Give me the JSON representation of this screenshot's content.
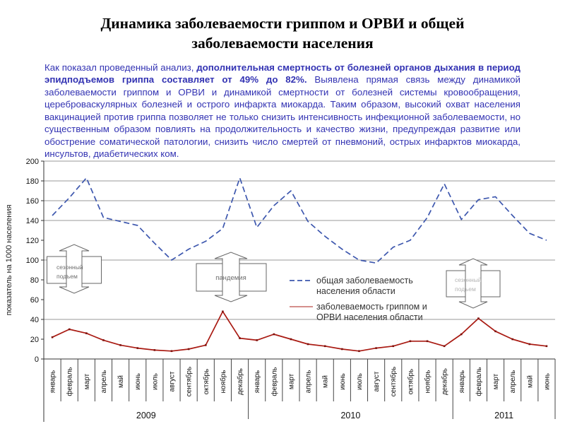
{
  "slide": {
    "title_lines": [
      "Динамика заболеваемости гриппом и ОРВИ и общей",
      "заболеваемости населения"
    ],
    "paragraph": {
      "intro": "Как показал проведенный анализ, ",
      "bold": "дополнительная смертность от болезней органов дыхания в период эпидподъемов гриппа составляет от 49% до 82%.",
      "rest": " Выявлена прямая связь между динамикой заболеваемости гриппом и ОРВИ и динамикой смертности от болезней системы кровообращения, цереброваскулярных болезней и острого инфаркта миокарда. Таким образом, высокий охват населения вакцинацией против гриппа позволяет не только снизить интенсивность инфекционной заболеваемости, но существенным образом повлиять на продолжительность и качество жизни, предупреждая развитие или обострение соматической патологии, снизить число смертей от пневмоний, острых инфарктов миокарда, инсультов, диабетических ком."
    }
  },
  "chart_data": {
    "type": "line",
    "ylabel": "показатель на 1000 населения",
    "ylim": [
      0,
      200
    ],
    "ytick_step": 20,
    "gridlines_at": [
      200,
      180,
      160,
      140,
      100,
      40
    ],
    "grid_color": "#9a9a9a",
    "axis_color": "#333333",
    "categories": [
      "январь",
      "февраль",
      "март",
      "апрель",
      "май",
      "июнь",
      "июль",
      "август",
      "сентябрь",
      "октябрь",
      "ноябрь",
      "декабрь",
      "январь",
      "февраль",
      "март",
      "апрель",
      "май",
      "июнь",
      "июль",
      "август",
      "сентябрь",
      "октябрь",
      "ноябрь",
      "декабрь",
      "январь",
      "февраль",
      "март",
      "апрель",
      "май",
      "июнь"
    ],
    "years": [
      {
        "label": "2009",
        "from": 0,
        "to": 12
      },
      {
        "label": "2010",
        "from": 12,
        "to": 24
      },
      {
        "label": "2011",
        "from": 24,
        "to": 30
      }
    ],
    "series": [
      {
        "name": "общая заболеваемость населения области",
        "legend_lines": [
          "общая заболеваемость",
          "населения области"
        ],
        "style": "dashed",
        "color": "#3d57ae",
        "values": [
          145,
          163,
          183,
          143,
          139,
          135,
          117,
          100,
          111,
          119,
          132,
          183,
          133,
          155,
          170,
          139,
          124,
          111,
          100,
          97,
          113,
          120,
          143,
          177,
          141,
          161,
          164,
          145,
          127,
          120
        ]
      },
      {
        "name": "заболеваемость гриппом и ОРВИ населения области",
        "legend_lines": [
          "заболеваемость гриппом и",
          "ОРВИ населения области"
        ],
        "style": "solid",
        "color": "#a91a12",
        "values": [
          22,
          30,
          26,
          19,
          14,
          11,
          9,
          8,
          10,
          14,
          48,
          21,
          19,
          25,
          20,
          15,
          13,
          10,
          8,
          11,
          13,
          18,
          18,
          13,
          25,
          41,
          28,
          20,
          15,
          13
        ]
      }
    ],
    "annotations": [
      {
        "lines": [
          "сезонный",
          "подъем"
        ],
        "text_color": "#6e6e6e"
      },
      {
        "lines": [
          "пандемия"
        ],
        "text_color": "#6b6b6b"
      },
      {
        "lines": [
          "сезонный",
          "подъем"
        ],
        "text_color": "#b4b4b4"
      }
    ]
  }
}
